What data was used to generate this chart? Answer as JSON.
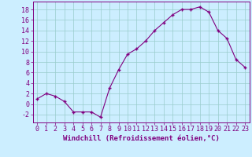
{
  "x": [
    0,
    1,
    2,
    3,
    4,
    5,
    6,
    7,
    8,
    9,
    10,
    11,
    12,
    13,
    14,
    15,
    16,
    17,
    18,
    19,
    20,
    21,
    22,
    23
  ],
  "y": [
    1,
    2,
    1.5,
    0.5,
    -1.5,
    -1.5,
    -1.5,
    -2.5,
    3,
    6.5,
    9.5,
    10.5,
    12,
    14,
    15.5,
    17,
    18,
    18,
    18.5,
    17.5,
    14,
    12.5,
    8.5,
    7
  ],
  "line_color": "#800080",
  "marker_color": "#800080",
  "bg_color": "#cceeff",
  "grid_color": "#99cccc",
  "xlabel": "Windchill (Refroidissement éolien,°C)",
  "xlabel_fontsize": 6.5,
  "tick_fontsize": 6.0,
  "ylim": [
    -3.5,
    19.5
  ],
  "yticks": [
    -2,
    0,
    2,
    4,
    6,
    8,
    10,
    12,
    14,
    16,
    18
  ],
  "xlim": [
    -0.5,
    23.5
  ]
}
